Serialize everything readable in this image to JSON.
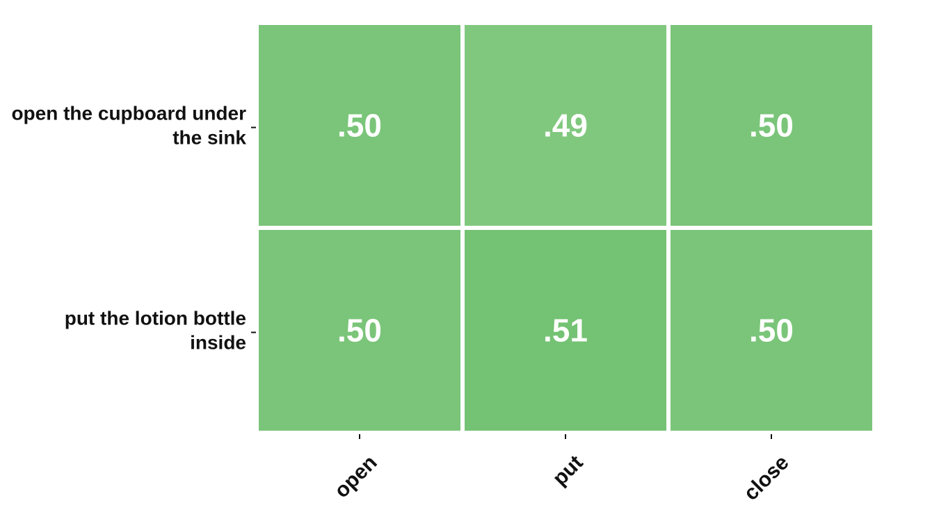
{
  "chart_data": {
    "type": "heatmap",
    "title": "",
    "xlabel": "",
    "ylabel": "",
    "x_categories": [
      "open",
      "put",
      "close"
    ],
    "y_categories": [
      [
        "open the cupboard under",
        "the sink"
      ],
      [
        "put the lotion bottle",
        "inside"
      ]
    ],
    "values": [
      [
        0.5,
        0.49,
        0.5
      ],
      [
        0.5,
        0.51,
        0.5
      ]
    ],
    "value_labels": [
      [
        ".50",
        ".49",
        ".50"
      ],
      [
        ".50",
        ".51",
        ".50"
      ]
    ],
    "colorscale": {
      "low": "#80c87e",
      "high": "#74c274"
    },
    "cell_border_color": "#ffffff",
    "legend": "none",
    "grid": false
  }
}
